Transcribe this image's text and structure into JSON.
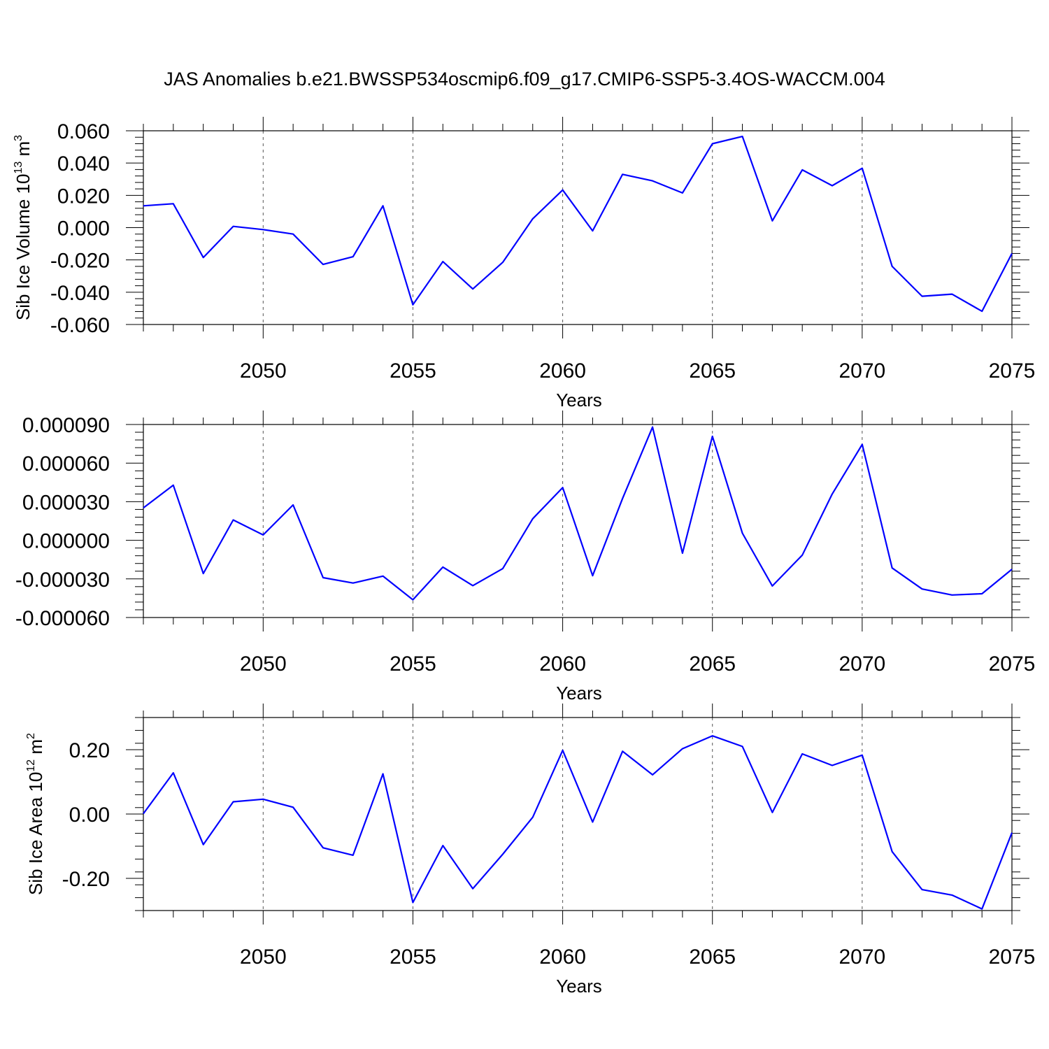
{
  "title": "JAS Anomalies b.e21.BWSSP534oscmip6.f09_g17.CMIP6-SSP5-3.4OS-WACCM.004",
  "colors": {
    "series": "#0000ff",
    "frame": "#000000",
    "grid": "#555555"
  },
  "chart_data": [
    {
      "type": "line",
      "xlabel": "Years",
      "ylabel": "Sib Ice Volume 10",
      "ylabel_sup": "13",
      "ylabel_unit": " m",
      "ylabel_unit_sup": "3",
      "xlim": [
        2046,
        2075
      ],
      "ylim": [
        -0.06,
        0.06
      ],
      "xticks": [
        2050,
        2055,
        2060,
        2065,
        2070,
        2075
      ],
      "yticks": [
        0.06,
        0.04,
        0.02,
        0.0,
        -0.02,
        -0.04,
        -0.06
      ],
      "ytick_labels": [
        "0.060",
        "0.040",
        "0.020",
        "0.000",
        "-0.020",
        "-0.040",
        "-0.060"
      ],
      "grid": "vertical dashed at major x ticks",
      "x": [
        2046,
        2047,
        2048,
        2049,
        2050,
        2051,
        2052,
        2053,
        2054,
        2055,
        2056,
        2057,
        2058,
        2059,
        2060,
        2061,
        2062,
        2063,
        2064,
        2065,
        2066,
        2067,
        2068,
        2069,
        2070,
        2071,
        2072,
        2073,
        2074,
        2075
      ],
      "y": [
        0.0135,
        0.0148,
        -0.0185,
        0.0008,
        -0.0012,
        -0.004,
        -0.0228,
        -0.018,
        0.0135,
        -0.0478,
        -0.021,
        -0.038,
        -0.0215,
        0.0055,
        0.0233,
        -0.002,
        0.033,
        0.029,
        0.0215,
        0.052,
        0.0565,
        0.0042,
        0.0358,
        0.026,
        0.0368,
        -0.024,
        -0.0425,
        -0.0412,
        -0.0518,
        -0.016
      ]
    },
    {
      "type": "line",
      "xlabel": "Years",
      "ylabel": "",
      "xlim": [
        2046,
        2075
      ],
      "ylim": [
        -6e-05,
        9e-05
      ],
      "xticks": [
        2050,
        2055,
        2060,
        2065,
        2070,
        2075
      ],
      "yticks": [
        9e-05,
        6e-05,
        3e-05,
        0.0,
        -3e-05,
        -6e-05
      ],
      "ytick_labels": [
        "0.000090",
        "0.000060",
        "0.000030",
        "0.000000",
        "-0.000030",
        "-0.000060"
      ],
      "grid": "vertical dashed at major x ticks",
      "x": [
        2046,
        2047,
        2048,
        2049,
        2050,
        2051,
        2052,
        2053,
        2054,
        2055,
        2056,
        2057,
        2058,
        2059,
        2060,
        2061,
        2062,
        2063,
        2064,
        2065,
        2066,
        2067,
        2068,
        2069,
        2070,
        2071,
        2072,
        2073,
        2074,
        2075
      ],
      "y": [
        2.52e-05,
        4.28e-05,
        -2.58e-05,
        1.58e-05,
        4.2e-06,
        2.75e-05,
        -2.9e-05,
        -3.32e-05,
        -2.78e-05,
        -4.62e-05,
        -2.08e-05,
        -3.52e-05,
        -2.2e-05,
        1.68e-05,
        4.1e-05,
        -2.75e-05,
        3.25e-05,
        8.8e-05,
        -1e-05,
        8.08e-05,
        5.5e-06,
        -3.55e-05,
        -1.15e-05,
        3.6e-05,
        7.45e-05,
        -2.15e-05,
        -3.78e-05,
        -4.25e-05,
        -4.15e-05,
        -2.25e-05
      ]
    },
    {
      "type": "line",
      "xlabel": "Years",
      "ylabel": "Sib Ice Area 10",
      "ylabel_sup": "12",
      "ylabel_unit": " m",
      "ylabel_unit_sup": "2",
      "xlim": [
        2046,
        2075
      ],
      "ylim": [
        -0.3,
        0.3
      ],
      "xticks": [
        2050,
        2055,
        2060,
        2065,
        2070,
        2075
      ],
      "yticks": [
        0.2,
        0.0,
        -0.2
      ],
      "ytick_labels": [
        "0.20",
        "0.00",
        "-0.20"
      ],
      "grid": "vertical dashed at major x ticks",
      "x": [
        2046,
        2047,
        2048,
        2049,
        2050,
        2051,
        2052,
        2053,
        2054,
        2055,
        2056,
        2057,
        2058,
        2059,
        2060,
        2061,
        2062,
        2063,
        2064,
        2065,
        2066,
        2067,
        2068,
        2069,
        2070,
        2071,
        2072,
        2073,
        2074,
        2075
      ],
      "y": [
        0.001,
        0.128,
        -0.095,
        0.038,
        0.046,
        0.021,
        -0.105,
        -0.128,
        0.125,
        -0.275,
        -0.098,
        -0.232,
        -0.125,
        -0.01,
        0.198,
        -0.025,
        0.195,
        0.122,
        0.203,
        0.243,
        0.21,
        0.005,
        0.187,
        0.151,
        0.183,
        -0.117,
        -0.235,
        -0.252,
        -0.295,
        -0.058
      ]
    }
  ]
}
